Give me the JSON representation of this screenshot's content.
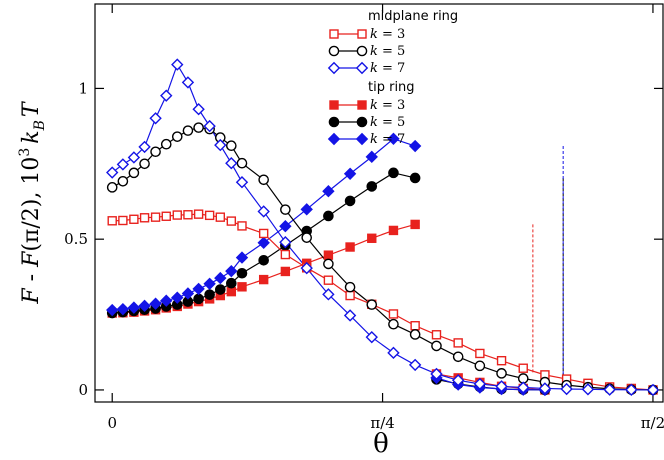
{
  "chart_data": {
    "type": "line",
    "xlabel": "θ",
    "ylabel_parts": [
      "F",
      " - ",
      "F",
      "(π/2), 10",
      "3",
      "k",
      "B",
      "T"
    ],
    "xlim": [
      -0.05,
      1.6
    ],
    "ylim": [
      -0.04,
      1.28
    ],
    "x_ticks": [
      {
        "value": 0,
        "label": "0"
      },
      {
        "value": 0.7854,
        "label": "π/4"
      },
      {
        "value": 1.5708,
        "label": "π/2"
      }
    ],
    "y_ticks": [
      {
        "value": 0,
        "label": "0"
      },
      {
        "value": 0.5,
        "label": "0.5"
      },
      {
        "value": 1,
        "label": "1"
      }
    ],
    "legend_groups": [
      {
        "title": "midplane ring",
        "series": [
          0,
          1,
          2
        ]
      },
      {
        "title": "tip ring",
        "series": [
          3,
          4,
          5
        ]
      }
    ],
    "series": [
      {
        "name": "k = 3",
        "k_label": "k",
        "k_value": " = 3",
        "group": "midplane ring",
        "color": "#e8221e",
        "marker": "square",
        "filled": false,
        "x": [
          0,
          0.031,
          0.063,
          0.094,
          0.126,
          0.157,
          0.189,
          0.22,
          0.251,
          0.283,
          0.314,
          0.346,
          0.377,
          0.44,
          0.503,
          0.565,
          0.628,
          0.691,
          0.754,
          0.817,
          0.88,
          0.942,
          1.005,
          1.068,
          1.131,
          1.194,
          1.257,
          1.32,
          1.382,
          1.445,
          1.508,
          1.571
        ],
        "y": [
          0.561,
          0.562,
          0.566,
          0.571,
          0.573,
          0.576,
          0.58,
          0.581,
          0.583,
          0.579,
          0.573,
          0.56,
          0.544,
          0.519,
          0.449,
          0.405,
          0.364,
          0.313,
          0.284,
          0.252,
          0.213,
          0.183,
          0.156,
          0.121,
          0.097,
          0.072,
          0.05,
          0.036,
          0.022,
          0.01,
          0.005,
          0
        ]
      },
      {
        "name": "k = 5",
        "k_label": "k",
        "k_value": " = 5",
        "group": "midplane ring",
        "color": "#000000",
        "marker": "circle",
        "filled": false,
        "x": [
          0,
          0.031,
          0.063,
          0.094,
          0.126,
          0.157,
          0.189,
          0.22,
          0.251,
          0.283,
          0.314,
          0.346,
          0.377,
          0.44,
          0.503,
          0.565,
          0.628,
          0.691,
          0.754,
          0.817,
          0.88,
          0.942,
          1.005,
          1.068,
          1.131,
          1.194,
          1.257,
          1.32,
          1.382,
          1.445,
          1.508,
          1.571
        ],
        "y": [
          0.672,
          0.692,
          0.72,
          0.75,
          0.79,
          0.815,
          0.84,
          0.86,
          0.87,
          0.865,
          0.837,
          0.81,
          0.752,
          0.697,
          0.598,
          0.505,
          0.418,
          0.341,
          0.283,
          0.218,
          0.184,
          0.146,
          0.11,
          0.08,
          0.055,
          0.038,
          0.026,
          0.016,
          0.009,
          0.004,
          0.001,
          0
        ]
      },
      {
        "name": "k = 7",
        "k_label": "k",
        "k_value": " = 7",
        "group": "midplane ring",
        "color": "#1414e6",
        "marker": "diamond",
        "filled": false,
        "x": [
          0,
          0.031,
          0.063,
          0.094,
          0.126,
          0.157,
          0.189,
          0.22,
          0.251,
          0.283,
          0.314,
          0.346,
          0.377,
          0.44,
          0.503,
          0.565,
          0.628,
          0.691,
          0.754,
          0.817,
          0.88,
          0.942,
          1.005,
          1.068,
          1.131,
          1.194,
          1.257,
          1.32,
          1.382,
          1.445,
          1.508,
          1.571
        ],
        "y": [
          0.721,
          0.748,
          0.771,
          0.806,
          0.901,
          0.976,
          1.079,
          1.02,
          0.931,
          0.875,
          0.812,
          0.752,
          0.689,
          0.592,
          0.49,
          0.404,
          0.317,
          0.247,
          0.175,
          0.123,
          0.083,
          0.053,
          0.032,
          0.02,
          0.012,
          0.008,
          0.005,
          0.003,
          0.002,
          0.001,
          0.0005,
          0
        ]
      },
      {
        "name": "k = 3",
        "k_label": "k",
        "k_value": " = 3",
        "group": "tip ring",
        "color": "#e8221e",
        "marker": "square",
        "filled": true,
        "x": [
          0,
          0.031,
          0.063,
          0.094,
          0.126,
          0.157,
          0.189,
          0.22,
          0.251,
          0.283,
          0.314,
          0.346,
          0.377,
          0.44,
          0.503,
          0.565,
          0.628,
          0.691,
          0.754,
          0.817,
          0.88,
          0.942,
          1.005,
          1.068,
          1.131,
          1.194,
          1.257
        ],
        "y": [
          0.255,
          0.256,
          0.258,
          0.262,
          0.266,
          0.272,
          0.277,
          0.285,
          0.293,
          0.302,
          0.313,
          0.326,
          0.342,
          0.366,
          0.393,
          0.42,
          0.447,
          0.474,
          0.503,
          0.529,
          0.549,
          0.053,
          0.04,
          0.025,
          0.012,
          0.005,
          0
        ]
      },
      {
        "name": "k = 5",
        "k_label": "k",
        "k_value": " = 5",
        "group": "tip ring",
        "color": "#000000",
        "marker": "circle",
        "filled": true,
        "x": [
          0,
          0.031,
          0.063,
          0.094,
          0.126,
          0.157,
          0.189,
          0.22,
          0.251,
          0.283,
          0.314,
          0.346,
          0.377,
          0.44,
          0.503,
          0.565,
          0.628,
          0.691,
          0.754,
          0.817,
          0.88,
          0.942,
          1.005,
          1.068,
          1.131,
          1.194,
          1.257
        ],
        "y": [
          0.255,
          0.258,
          0.262,
          0.266,
          0.27,
          0.277,
          0.283,
          0.293,
          0.302,
          0.316,
          0.333,
          0.354,
          0.387,
          0.43,
          0.479,
          0.527,
          0.577,
          0.627,
          0.675,
          0.72,
          0.703,
          0.035,
          0.02,
          0.01,
          0.003,
          0.001,
          0
        ]
      },
      {
        "name": "k = 7",
        "k_label": "k",
        "k_value": " = 7",
        "group": "tip ring",
        "color": "#1414e6",
        "marker": "diamond",
        "filled": true,
        "x": [
          0,
          0.031,
          0.063,
          0.094,
          0.126,
          0.157,
          0.189,
          0.22,
          0.251,
          0.283,
          0.314,
          0.346,
          0.377,
          0.44,
          0.503,
          0.565,
          0.628,
          0.691,
          0.754,
          0.817,
          0.88,
          0.942,
          1.005,
          1.068,
          1.131,
          1.194,
          1.257
        ],
        "y": [
          0.265,
          0.268,
          0.273,
          0.279,
          0.286,
          0.296,
          0.306,
          0.32,
          0.335,
          0.352,
          0.371,
          0.394,
          0.439,
          0.488,
          0.543,
          0.599,
          0.659,
          0.717,
          0.773,
          0.833,
          0.809,
          0.04,
          0.018,
          0.008,
          0.003,
          0.001,
          0
        ]
      }
    ],
    "drop_lines": [
      {
        "series": 3,
        "x": 1.222,
        "y_from": 0.549,
        "y_to": 0.053,
        "color": "#e8221e"
      },
      {
        "series": 4,
        "x": 1.31,
        "y_from": 0.703,
        "y_to": 0.035,
        "color": "#000000"
      },
      {
        "series": 5,
        "x": 1.31,
        "y_from": 0.809,
        "y_to": 0.04,
        "color": "#1414e6"
      }
    ]
  }
}
